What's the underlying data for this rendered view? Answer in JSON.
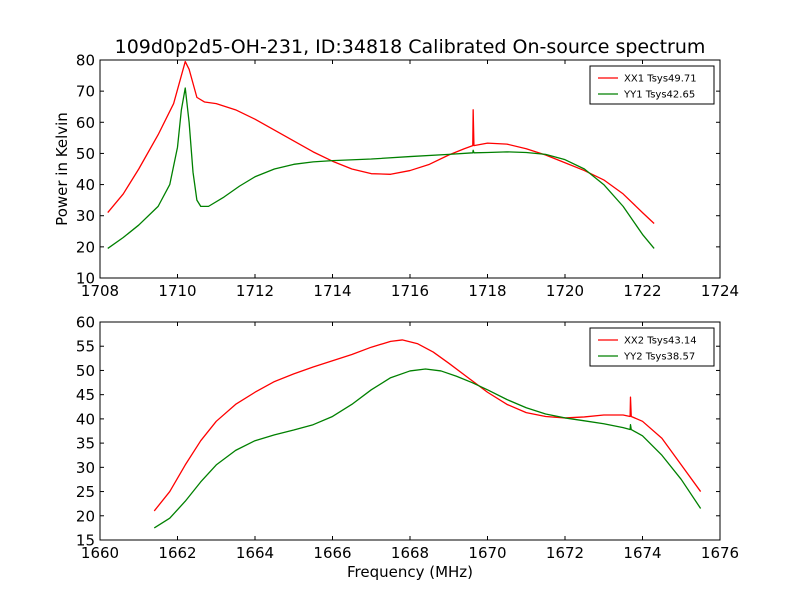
{
  "figure": {
    "title": "109d0p2d5-OH-231, ID:34818 Calibrated On-source spectrum"
  },
  "chart_data": [
    {
      "type": "line",
      "title": "109d0p2d5-OH-231, ID:34818 Calibrated On-source spectrum",
      "xlabel": "",
      "ylabel": "Power in Kelvin",
      "xlim": [
        1708,
        1724
      ],
      "ylim": [
        10,
        80
      ],
      "xticks": [
        1708,
        1710,
        1712,
        1714,
        1716,
        1718,
        1720,
        1722,
        1724
      ],
      "xtick_labels": [
        "1708",
        "1710",
        "1712",
        "1714",
        "1716",
        "1718",
        "1720",
        "1722",
        "1724"
      ],
      "yticks": [
        10,
        20,
        30,
        40,
        50,
        60,
        70,
        80
      ],
      "ytick_labels": [
        "10",
        "20",
        "30",
        "40",
        "50",
        "60",
        "70",
        "80"
      ],
      "grid": false,
      "legend_position": "top-right",
      "series": [
        {
          "name": "XX1 Tsys49.71",
          "color": "#ff0000",
          "points": [
            [
              1708.2,
              31
            ],
            [
              1708.6,
              37
            ],
            [
              1709.0,
              45
            ],
            [
              1709.5,
              56
            ],
            [
              1709.9,
              66
            ],
            [
              1710.1,
              75
            ],
            [
              1710.2,
              79.5
            ],
            [
              1710.3,
              77
            ],
            [
              1710.5,
              68
            ],
            [
              1710.7,
              66.5
            ],
            [
              1711.0,
              66
            ],
            [
              1711.5,
              64
            ],
            [
              1712.0,
              61
            ],
            [
              1712.5,
              57.5
            ],
            [
              1713.0,
              54
            ],
            [
              1713.5,
              50.5
            ],
            [
              1714.0,
              47.5
            ],
            [
              1714.5,
              45
            ],
            [
              1715.0,
              43.5
            ],
            [
              1715.5,
              43.3
            ],
            [
              1716.0,
              44.5
            ],
            [
              1716.5,
              46.5
            ],
            [
              1717.0,
              49.5
            ],
            [
              1717.4,
              51.5
            ],
            [
              1717.62,
              52.5
            ],
            [
              1717.63,
              64
            ],
            [
              1717.65,
              52.5
            ],
            [
              1718.0,
              53.3
            ],
            [
              1718.5,
              53
            ],
            [
              1719.0,
              51.5
            ],
            [
              1719.5,
              49.5
            ],
            [
              1720.0,
              47
            ],
            [
              1720.5,
              44.5
            ],
            [
              1721.0,
              41.5
            ],
            [
              1721.5,
              37
            ],
            [
              1722.0,
              31
            ],
            [
              1722.3,
              27.5
            ]
          ]
        },
        {
          "name": "YY1 Tsys42.65",
          "color": "#008000",
          "points": [
            [
              1708.2,
              19.5
            ],
            [
              1708.6,
              23
            ],
            [
              1709.0,
              27
            ],
            [
              1709.5,
              33
            ],
            [
              1709.8,
              40
            ],
            [
              1710.0,
              52
            ],
            [
              1710.1,
              64
            ],
            [
              1710.2,
              71
            ],
            [
              1710.3,
              60
            ],
            [
              1710.4,
              44
            ],
            [
              1710.5,
              35
            ],
            [
              1710.6,
              33
            ],
            [
              1710.8,
              33
            ],
            [
              1711.2,
              36
            ],
            [
              1711.6,
              39.5
            ],
            [
              1712.0,
              42.5
            ],
            [
              1712.5,
              45
            ],
            [
              1713.0,
              46.5
            ],
            [
              1713.5,
              47.3
            ],
            [
              1714.0,
              47.7
            ],
            [
              1715.0,
              48.2
            ],
            [
              1716.0,
              49
            ],
            [
              1717.0,
              49.7
            ],
            [
              1717.62,
              50.2
            ],
            [
              1717.63,
              51
            ],
            [
              1717.65,
              50.2
            ],
            [
              1718.0,
              50.3
            ],
            [
              1718.5,
              50.5
            ],
            [
              1719.0,
              50.3
            ],
            [
              1719.5,
              49.7
            ],
            [
              1720.0,
              48
            ],
            [
              1720.5,
              45
            ],
            [
              1721.0,
              40
            ],
            [
              1721.5,
              33
            ],
            [
              1722.0,
              24
            ],
            [
              1722.3,
              19.5
            ]
          ]
        }
      ]
    },
    {
      "type": "line",
      "title": "",
      "xlabel": "Frequency (MHz)",
      "ylabel": "",
      "xlim": [
        1660,
        1676
      ],
      "ylim": [
        15,
        60
      ],
      "xticks": [
        1660,
        1662,
        1664,
        1666,
        1668,
        1670,
        1672,
        1674,
        1676
      ],
      "xtick_labels": [
        "1660",
        "1662",
        "1664",
        "1666",
        "1668",
        "1670",
        "1672",
        "1674",
        "1676"
      ],
      "yticks": [
        15,
        20,
        25,
        30,
        35,
        40,
        45,
        50,
        55,
        60
      ],
      "ytick_labels": [
        "15",
        "20",
        "25",
        "30",
        "35",
        "40",
        "45",
        "50",
        "55",
        "60"
      ],
      "grid": false,
      "legend_position": "top-right",
      "series": [
        {
          "name": "XX2 Tsys43.14",
          "color": "#ff0000",
          "points": [
            [
              1661.4,
              21
            ],
            [
              1661.8,
              25
            ],
            [
              1662.2,
              30.5
            ],
            [
              1662.6,
              35.5
            ],
            [
              1663.0,
              39.5
            ],
            [
              1663.5,
              43
            ],
            [
              1664.0,
              45.5
            ],
            [
              1664.5,
              47.7
            ],
            [
              1665.0,
              49.3
            ],
            [
              1665.5,
              50.7
            ],
            [
              1666.0,
              52
            ],
            [
              1666.5,
              53.3
            ],
            [
              1667.0,
              54.8
            ],
            [
              1667.5,
              56
            ],
            [
              1667.8,
              56.3
            ],
            [
              1668.2,
              55.5
            ],
            [
              1668.6,
              53.8
            ],
            [
              1669.0,
              51.5
            ],
            [
              1669.5,
              48.5
            ],
            [
              1670.0,
              45.5
            ],
            [
              1670.5,
              43
            ],
            [
              1671.0,
              41.3
            ],
            [
              1671.5,
              40.5
            ],
            [
              1672.0,
              40.2
            ],
            [
              1672.5,
              40.4
            ],
            [
              1673.0,
              40.8
            ],
            [
              1673.5,
              40.8
            ],
            [
              1673.68,
              40.5
            ],
            [
              1673.69,
              44.5
            ],
            [
              1673.71,
              40.5
            ],
            [
              1674.0,
              39.5
            ],
            [
              1674.5,
              36
            ],
            [
              1675.0,
              30.5
            ],
            [
              1675.5,
              25
            ]
          ]
        },
        {
          "name": "YY2 Tsys38.57",
          "color": "#008000",
          "points": [
            [
              1661.4,
              17.5
            ],
            [
              1661.8,
              19.5
            ],
            [
              1662.2,
              23
            ],
            [
              1662.6,
              27
            ],
            [
              1663.0,
              30.5
            ],
            [
              1663.5,
              33.5
            ],
            [
              1664.0,
              35.5
            ],
            [
              1664.5,
              36.7
            ],
            [
              1665.0,
              37.7
            ],
            [
              1665.5,
              38.8
            ],
            [
              1666.0,
              40.5
            ],
            [
              1666.5,
              43
            ],
            [
              1667.0,
              46
            ],
            [
              1667.5,
              48.5
            ],
            [
              1668.0,
              49.9
            ],
            [
              1668.4,
              50.3
            ],
            [
              1668.8,
              49.9
            ],
            [
              1669.2,
              48.8
            ],
            [
              1669.6,
              47.5
            ],
            [
              1670.0,
              46
            ],
            [
              1670.5,
              44
            ],
            [
              1671.0,
              42.3
            ],
            [
              1671.5,
              41
            ],
            [
              1672.0,
              40.2
            ],
            [
              1672.5,
              39.6
            ],
            [
              1673.0,
              39
            ],
            [
              1673.5,
              38.2
            ],
            [
              1673.68,
              37.8
            ],
            [
              1673.69,
              38.8
            ],
            [
              1673.71,
              37.8
            ],
            [
              1674.0,
              36.5
            ],
            [
              1674.5,
              32.5
            ],
            [
              1675.0,
              27.5
            ],
            [
              1675.5,
              21.5
            ]
          ]
        }
      ]
    }
  ]
}
